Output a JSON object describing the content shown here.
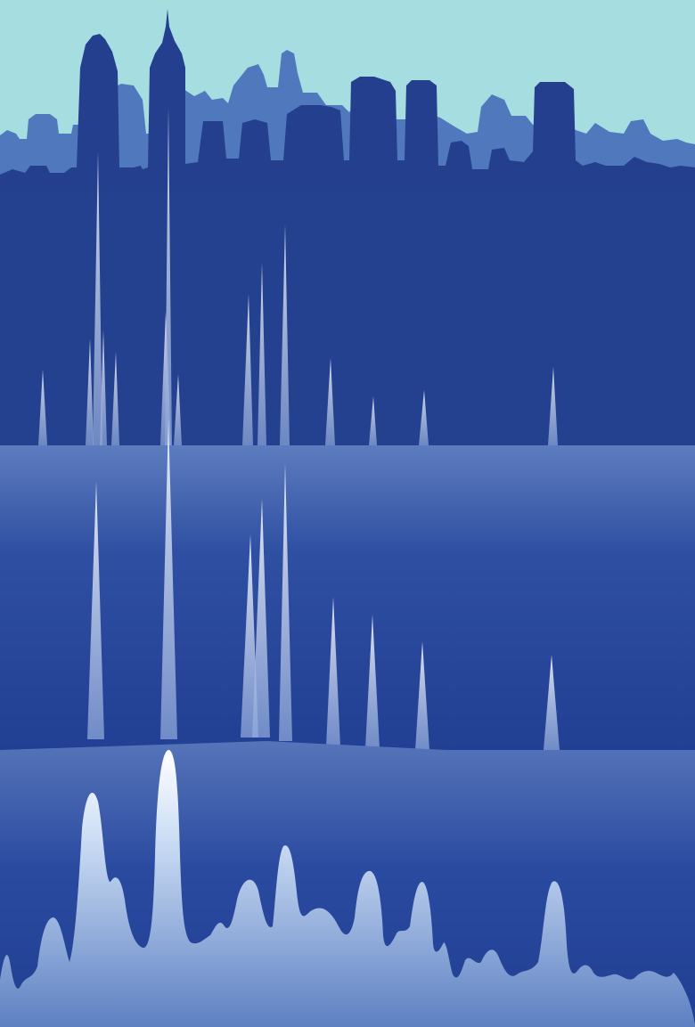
{
  "colors": {
    "sky": "#a6dde0",
    "skyline_back": "#4f78bd",
    "skyline_front": "#243f8e",
    "panel_top": "#24418f",
    "panel_mid_light": "#5d7cbf",
    "panel_mid_dark": "#213f93",
    "panel_bottom_light": "#5674b9",
    "panel_bottom_dark": "#203f92",
    "peak_light": "#cfe6ff",
    "peak_white": "#ffffff"
  },
  "icons": [
    "skyline-silhouette",
    "chromatogram-peaks",
    "spectrum-curve"
  ],
  "visible_text": []
}
